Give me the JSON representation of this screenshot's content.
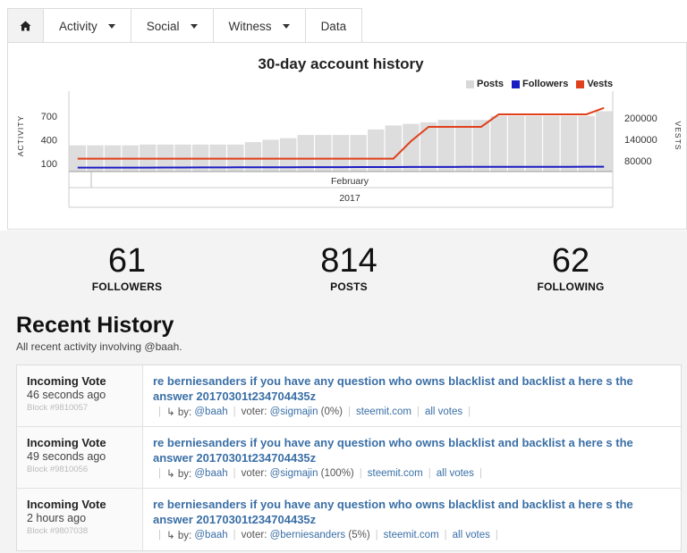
{
  "nav": {
    "home_icon": "home-icon",
    "tabs": [
      {
        "label": "Activity",
        "dropdown": true
      },
      {
        "label": "Social",
        "dropdown": true
      },
      {
        "label": "Witness",
        "dropdown": true
      },
      {
        "label": "Data",
        "dropdown": false
      }
    ]
  },
  "chart_data": {
    "type": "bar",
    "title": "30-day account history",
    "legend": [
      {
        "name": "Posts",
        "color": "#dcdcdc"
      },
      {
        "name": "Followers",
        "color": "#1b1bc4"
      },
      {
        "name": "Vests",
        "color": "#e0401c"
      }
    ],
    "legend_position": "top-right",
    "ylabel_left": "ACTIVITY",
    "ylabel_right": "VESTS",
    "yticks_left": [
      "700",
      "400",
      "100"
    ],
    "yticks_right": [
      "200000",
      "140000",
      "80000"
    ],
    "ylim_left": [
      0,
      900
    ],
    "ylim_right": [
      50000,
      250000
    ],
    "xlabel_month": "February",
    "xlabel_year": "2017",
    "series": [
      {
        "name": "Posts",
        "kind": "bar",
        "values": [
          330,
          330,
          330,
          330,
          340,
          340,
          340,
          340,
          340,
          340,
          370,
          400,
          420,
          460,
          460,
          460,
          460,
          530,
          580,
          600,
          620,
          650,
          650,
          650,
          700,
          700,
          700,
          700,
          700,
          700,
          760
        ]
      },
      {
        "name": "Followers",
        "kind": "line",
        "values": [
          50,
          50,
          50,
          50,
          50,
          51,
          51,
          52,
          52,
          53,
          53,
          54,
          54,
          55,
          55,
          55,
          56,
          56,
          56,
          57,
          57,
          57,
          58,
          58,
          58,
          59,
          59,
          60,
          60,
          61,
          61
        ]
      },
      {
        "name": "Vests",
        "kind": "line",
        "values": [
          86000,
          86000,
          86000,
          86000,
          86000,
          86000,
          86000,
          86000,
          86000,
          86000,
          86000,
          86000,
          86000,
          86000,
          86000,
          86000,
          86000,
          86000,
          86000,
          135000,
          175000,
          175000,
          175000,
          175000,
          210000,
          210000,
          210000,
          210000,
          210000,
          210000,
          228000
        ]
      }
    ]
  },
  "stats": {
    "followers_count": "61",
    "followers_label": "FOLLOWERS",
    "posts_count": "814",
    "posts_label": "POSTS",
    "following_count": "62",
    "following_label": "FOLLOWING"
  },
  "history": {
    "title": "Recent History",
    "subtitle": "All recent activity involving @baah.",
    "rows": [
      {
        "type": "Incoming Vote",
        "time": "46 seconds ago",
        "block": "Block #9810057",
        "title": "re berniesanders if you have any question who owns blacklist and backlist a here s the answer 20170301t234704435z",
        "by_label": "↳ by:",
        "by": "@baah",
        "voter_label": "voter:",
        "voter": "@sigmajin",
        "weight": "(0%)",
        "site": "steemit.com",
        "all_votes": "all votes"
      },
      {
        "type": "Incoming Vote",
        "time": "49 seconds ago",
        "block": "Block #9810056",
        "title": "re berniesanders if you have any question who owns blacklist and backlist a here s the answer 20170301t234704435z",
        "by_label": "↳ by:",
        "by": "@baah",
        "voter_label": "voter:",
        "voter": "@sigmajin",
        "weight": "(100%)",
        "site": "steemit.com",
        "all_votes": "all votes"
      },
      {
        "type": "Incoming Vote",
        "time": "2 hours ago",
        "block": "Block #9807038",
        "title": "re berniesanders if you have any question who owns blacklist and backlist a here s the answer 20170301t234704435z",
        "by_label": "↳ by:",
        "by": "@baah",
        "voter_label": "voter:",
        "voter": "@berniesanders",
        "weight": "(5%)",
        "site": "steemit.com",
        "all_votes": "all votes"
      }
    ]
  }
}
